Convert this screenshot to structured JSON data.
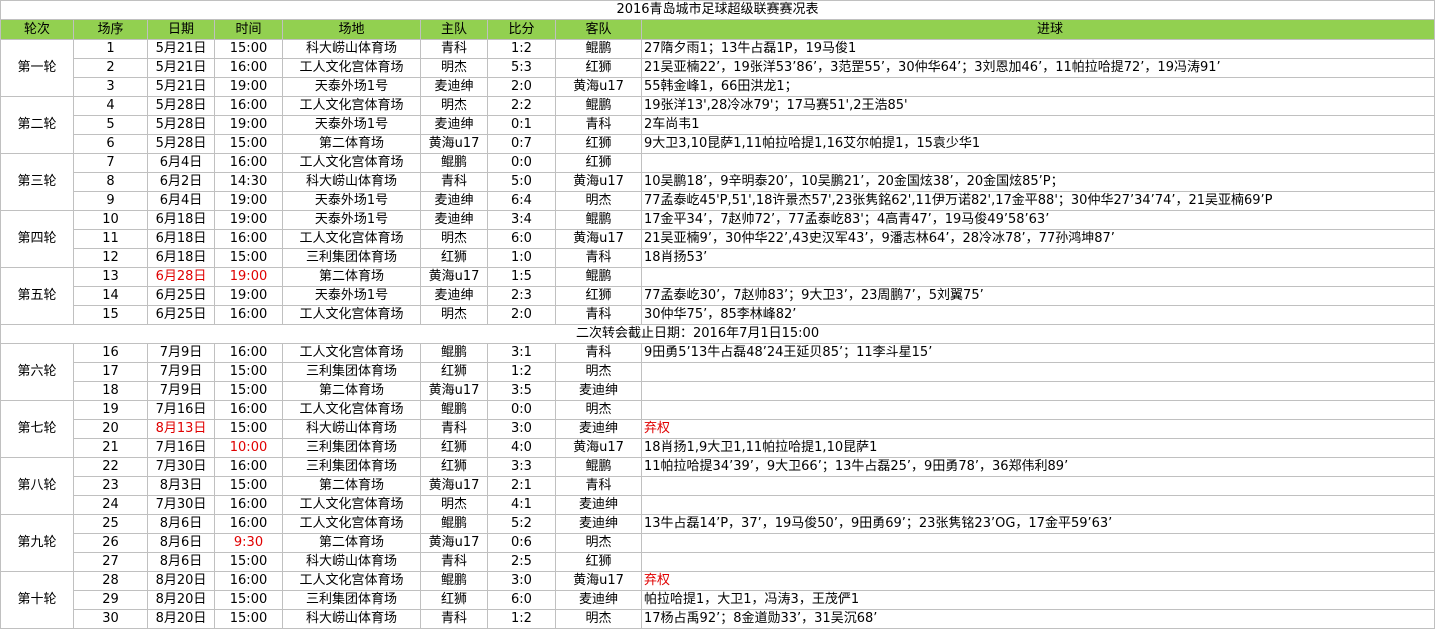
{
  "title": "2016青岛城市足球超级联赛赛况表",
  "headers": [
    "轮次",
    "场序",
    "日期",
    "时间",
    "场地",
    "主队",
    "比分",
    "客队",
    "进球"
  ],
  "colors": {
    "header_bg": "#92D050",
    "highlight": "#e00000",
    "grid": "#c0c0c0"
  },
  "separator": {
    "after_match": 15,
    "text": "二次转会截止日期：2016年7月1日15:00"
  },
  "rounds": [
    {
      "label": "第一轮",
      "matches": [
        {
          "no": "1",
          "date": "5月21日",
          "time": "15:00",
          "venue": "科大崂山体育场",
          "home": "青科",
          "score": "1:2",
          "away": "鲲鹏",
          "goals": "27隋夕雨1；13牛占磊1P，19马俊1"
        },
        {
          "no": "2",
          "date": "5月21日",
          "time": "16:00",
          "venue": "工人文化宫体育场",
          "home": "明杰",
          "score": "5:3",
          "away": "红狮",
          "goals": "21吴亚楠22’，19张洋53’86’，3范罡55’，30仲华64’；3刘恩加46’，11帕拉哈提72’，19冯涛91’"
        },
        {
          "no": "3",
          "date": "5月21日",
          "time": "19:00",
          "venue": "天泰外场1号",
          "home": "麦迪绅",
          "score": "2:0",
          "away": "黄海u17",
          "goals": "55韩金峰1，66田洪龙1；"
        }
      ]
    },
    {
      "label": "第二轮",
      "matches": [
        {
          "no": "4",
          "date": "5月28日",
          "time": "16:00",
          "venue": "工人文化宫体育场",
          "home": "明杰",
          "score": "2:2",
          "away": "鲲鹏",
          "goals": "19张洋13',28冷冰79'；17马赛51',2王浩85'"
        },
        {
          "no": "5",
          "date": "5月28日",
          "time": "19:00",
          "venue": "天泰外场1号",
          "home": "麦迪绅",
          "score": "0:1",
          "away": "青科",
          "goals": "2车尚韦1"
        },
        {
          "no": "6",
          "date": "5月28日",
          "time": "15:00",
          "venue": "第二体育场",
          "home": "黄海u17",
          "score": "0:7",
          "away": "红狮",
          "goals": "9大卫3,10昆萨1,11帕拉哈提1,16艾尔帕提1，15袁少华1"
        }
      ]
    },
    {
      "label": "第三轮",
      "matches": [
        {
          "no": "7",
          "date": "6月4日",
          "time": "16:00",
          "venue": "工人文化宫体育场",
          "home": "鲲鹏",
          "score": "0:0",
          "away": "红狮",
          "goals": ""
        },
        {
          "no": "8",
          "date": "6月2日",
          "time": "14:30",
          "venue": "科大崂山体育场",
          "home": "青科",
          "score": "5:0",
          "away": "黄海u17",
          "goals": "10吴鹏18’，9辛明泰20’，10吴鹏21’，20金国炫38’，20金国炫85’P；"
        },
        {
          "no": "9",
          "date": "6月4日",
          "time": "19:00",
          "venue": "天泰外场1号",
          "home": "麦迪绅",
          "score": "6:4",
          "away": "明杰",
          "goals": "77孟泰屹45'P,51',18许景杰57',23张隽銘62',11伊万诺82',17金平88'；30仲华27’34’74’，21吴亚楠69’P"
        }
      ]
    },
    {
      "label": "第四轮",
      "matches": [
        {
          "no": "10",
          "date": "6月18日",
          "time": "19:00",
          "venue": "天泰外场1号",
          "home": "麦迪绅",
          "score": "3:4",
          "away": "鲲鹏",
          "goals": "17金平34’，7赵帅72’，77孟泰屹83'；4高青47’，19马俊49’58’63’"
        },
        {
          "no": "11",
          "date": "6月18日",
          "time": "16:00",
          "venue": "工人文化宫体育场",
          "home": "明杰",
          "score": "6:0",
          "away": "黄海u17",
          "goals": "21吴亚楠9’，30仲华22’,43史汉军43’，9潘志林64’，28冷冰78’，77孙鸿坤87’"
        },
        {
          "no": "12",
          "date": "6月18日",
          "time": "15:00",
          "venue": "三利集团体育场",
          "home": "红狮",
          "score": "1:0",
          "away": "青科",
          "goals": "18肖扬53’"
        }
      ]
    },
    {
      "label": "第五轮",
      "matches": [
        {
          "no": "13",
          "date": "6月28日",
          "time": "19:00",
          "venue": "第二体育场",
          "home": "黄海u17",
          "score": "1:5",
          "away": "鲲鹏",
          "goals": "",
          "date_red": true,
          "time_red": true
        },
        {
          "no": "14",
          "date": "6月25日",
          "time": "19:00",
          "venue": "天泰外场1号",
          "home": "麦迪绅",
          "score": "2:3",
          "away": "红狮",
          "goals": "77孟泰屹30’，7赵帅83’；9大卫3’，23周鹏7’，5刘翼75’"
        },
        {
          "no": "15",
          "date": "6月25日",
          "time": "16:00",
          "venue": "工人文化宫体育场",
          "home": "明杰",
          "score": "2:0",
          "away": "青科",
          "goals": "30仲华75’，85李林峰82’"
        }
      ]
    },
    {
      "label": "第六轮",
      "matches": [
        {
          "no": "16",
          "date": "7月9日",
          "time": "16:00",
          "venue": "工人文化宫体育场",
          "home": "鲲鹏",
          "score": "3:1",
          "away": "青科",
          "goals": "9田勇5’13牛占磊48’24王延贝85’；11李斗星15’"
        },
        {
          "no": "17",
          "date": "7月9日",
          "time": "15:00",
          "venue": "三利集团体育场",
          "home": "红狮",
          "score": "1:2",
          "away": "明杰",
          "goals": ""
        },
        {
          "no": "18",
          "date": "7月9日",
          "time": "15:00",
          "venue": "第二体育场",
          "home": "黄海u17",
          "score": "3:5",
          "away": "麦迪绅",
          "goals": ""
        }
      ]
    },
    {
      "label": "第七轮",
      "matches": [
        {
          "no": "19",
          "date": "7月16日",
          "time": "16:00",
          "venue": "工人文化宫体育场",
          "home": "鲲鹏",
          "score": "0:0",
          "away": "明杰",
          "goals": ""
        },
        {
          "no": "20",
          "date": "8月13日",
          "time": "15:00",
          "venue": "科大崂山体育场",
          "home": "青科",
          "score": "3:0",
          "away": "麦迪绅",
          "goals": "弃权",
          "date_red": true,
          "goals_red": true
        },
        {
          "no": "21",
          "date": "7月16日",
          "time": "10:00",
          "venue": "三利集团体育场",
          "home": "红狮",
          "score": "4:0",
          "away": "黄海u17",
          "goals": "18肖扬1,9大卫1,11帕拉哈提1,10昆萨1",
          "time_red": true
        }
      ]
    },
    {
      "label": "第八轮",
      "matches": [
        {
          "no": "22",
          "date": "7月30日",
          "time": "16:00",
          "venue": "三利集团体育场",
          "home": "红狮",
          "score": "3:3",
          "away": "鲲鹏",
          "goals": "11帕拉哈提34’39’，9大卫66’；13牛占磊25’，9田勇78’，36郑伟利89’"
        },
        {
          "no": "23",
          "date": "8月3日",
          "time": "15:00",
          "venue": "第二体育场",
          "home": "黄海u17",
          "score": "2:1",
          "away": "青科",
          "goals": ""
        },
        {
          "no": "24",
          "date": "7月30日",
          "time": "16:00",
          "venue": "工人文化宫体育场",
          "home": "明杰",
          "score": "4:1",
          "away": "麦迪绅",
          "goals": ""
        }
      ]
    },
    {
      "label": "第九轮",
      "matches": [
        {
          "no": "25",
          "date": "8月6日",
          "time": "16:00",
          "venue": "工人文化宫体育场",
          "home": "鲲鹏",
          "score": "5:2",
          "away": "麦迪绅",
          "goals": "13牛占磊14’P，37’，19马俊50’，9田勇69’；23张隽铭23’OG，17金平59’63’"
        },
        {
          "no": "26",
          "date": "8月6日",
          "time": "9:30",
          "venue": "第二体育场",
          "home": "黄海u17",
          "score": "0:6",
          "away": "明杰",
          "goals": "",
          "time_red": true
        },
        {
          "no": "27",
          "date": "8月6日",
          "time": "15:00",
          "venue": "科大崂山体育场",
          "home": "青科",
          "score": "2:5",
          "away": "红狮",
          "goals": ""
        }
      ]
    },
    {
      "label": "第十轮",
      "matches": [
        {
          "no": "28",
          "date": "8月20日",
          "time": "16:00",
          "venue": "工人文化宫体育场",
          "home": "鲲鹏",
          "score": "3:0",
          "away": "黄海u17",
          "goals": "弃权",
          "goals_red": true
        },
        {
          "no": "29",
          "date": "8月20日",
          "time": "15:00",
          "venue": "三利集团体育场",
          "home": "红狮",
          "score": "6:0",
          "away": "麦迪绅",
          "goals": "帕拉哈提1，大卫1，冯涛3，王茂俨1"
        },
        {
          "no": "30",
          "date": "8月20日",
          "time": "15:00",
          "venue": "科大崂山体育场",
          "home": "青科",
          "score": "1:2",
          "away": "明杰",
          "goals": "17杨占禹92’；8金道勋33’，31吴沉68’"
        }
      ]
    }
  ]
}
